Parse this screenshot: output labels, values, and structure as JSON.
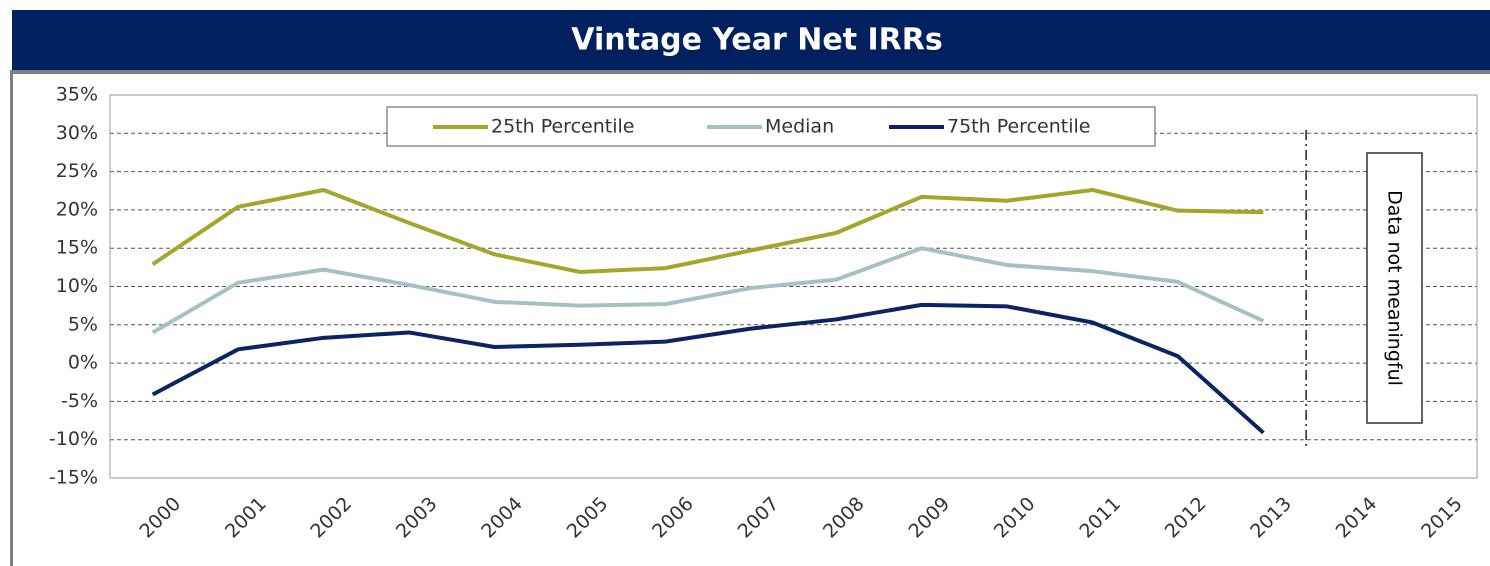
{
  "chart_data": {
    "type": "line",
    "title": "Vintage Year Net IRRs",
    "categories": [
      "2000",
      "2001",
      "2002",
      "2003",
      "2004",
      "2005",
      "2006",
      "2007",
      "2008",
      "2009",
      "2010",
      "2011",
      "2012",
      "2013",
      "2014",
      "2015"
    ],
    "series": [
      {
        "name": "25th Percentile",
        "color": "#a3a62b",
        "values": [
          12.9,
          20.4,
          22.6,
          18.3,
          14.2,
          11.9,
          12.4,
          14.7,
          17.0,
          21.7,
          21.2,
          22.6,
          19.9,
          19.7,
          null,
          null
        ]
      },
      {
        "name": "Median",
        "color": "#a6c0c4",
        "values": [
          4.0,
          10.5,
          12.2,
          10.2,
          8.0,
          7.5,
          7.7,
          9.8,
          10.9,
          15.0,
          12.8,
          12.0,
          10.6,
          5.5,
          null,
          null
        ]
      },
      {
        "name": "75th Percentile",
        "color": "#0c2461",
        "values": [
          -4.1,
          1.8,
          3.3,
          4.0,
          2.1,
          2.4,
          2.8,
          4.5,
          5.7,
          7.6,
          7.4,
          5.3,
          0.9,
          -9.1,
          null,
          null
        ]
      }
    ],
    "ylim": [
      -15,
      35
    ],
    "yticks": [
      {
        "value": -15,
        "label": "-15%"
      },
      {
        "value": -10,
        "label": "-10%"
      },
      {
        "value": -5,
        "label": "-5%"
      },
      {
        "value": 0,
        "label": "0%"
      },
      {
        "value": 5,
        "label": "5%"
      },
      {
        "value": 10,
        "label": "10%"
      },
      {
        "value": 15,
        "label": "15%"
      },
      {
        "value": 20,
        "label": "20%"
      },
      {
        "value": 25,
        "label": "25%"
      },
      {
        "value": 30,
        "label": "30%"
      },
      {
        "value": 35,
        "label": "35%"
      }
    ],
    "grid": true,
    "legend": "top",
    "annotation": "Data not meaningful"
  }
}
